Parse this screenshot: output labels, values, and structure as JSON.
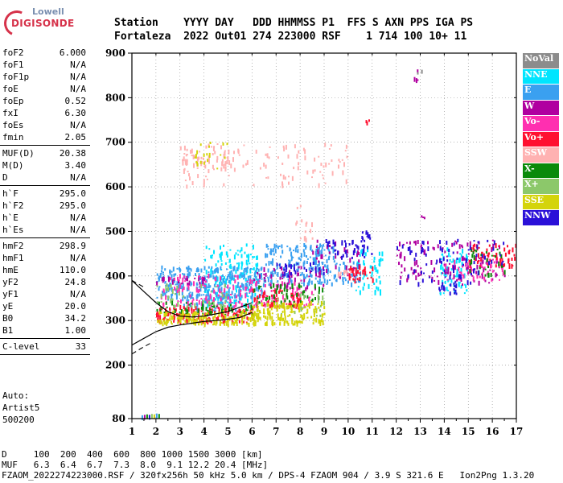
{
  "logo": {
    "line1": "Lowell",
    "line2": "DIGISONDE"
  },
  "header": {
    "line1": "Station    YYYY DAY   DDD HHMMSS P1  FFS S AXN PPS IGA PS",
    "line2": "Fortaleza  2022 Out01 274 223000 RSF    1 714 100 10+ 11"
  },
  "params": {
    "group1": [
      {
        "label": "foF2",
        "value": "6.000"
      },
      {
        "label": "foF1",
        "value": "N/A"
      },
      {
        "label": "foF1p",
        "value": "N/A"
      },
      {
        "label": "foE",
        "value": "N/A"
      },
      {
        "label": "foEp",
        "value": "0.52"
      },
      {
        "label": "fxI",
        "value": "6.30"
      },
      {
        "label": "foEs",
        "value": "N/A"
      },
      {
        "label": "fmin",
        "value": "2.05"
      }
    ],
    "group2": [
      {
        "label": "MUF(D)",
        "value": "20.38"
      },
      {
        "label": "M(D)",
        "value": "3.40"
      },
      {
        "label": "D",
        "value": "N/A"
      }
    ],
    "group3": [
      {
        "label": "h`F",
        "value": "295.0"
      },
      {
        "label": "h`F2",
        "value": "295.0"
      },
      {
        "label": "h`E",
        "value": "N/A"
      },
      {
        "label": "h`Es",
        "value": "N/A"
      }
    ],
    "group4": [
      {
        "label": "hmF2",
        "value": "298.9"
      },
      {
        "label": "hmF1",
        "value": "N/A"
      },
      {
        "label": "hmE",
        "value": "110.0"
      },
      {
        "label": "yF2",
        "value": "24.8"
      },
      {
        "label": "yF1",
        "value": "N/A"
      },
      {
        "label": "yE",
        "value": "20.0"
      },
      {
        "label": "B0",
        "value": "34.2"
      },
      {
        "label": "B1",
        "value": "1.00"
      }
    ],
    "group5": [
      {
        "label": "C-level",
        "value": "33"
      }
    ],
    "auto": [
      "Auto:",
      "Artist5",
      "500200"
    ]
  },
  "legend": [
    {
      "label": "NoVal",
      "color": "#8c8c8c"
    },
    {
      "label": "NNE",
      "color": "#00e5ff"
    },
    {
      "label": "E",
      "color": "#3aa0f0"
    },
    {
      "label": "W",
      "color": "#b000a0"
    },
    {
      "label": "Vo-",
      "color": "#ff2fb0"
    },
    {
      "label": "Vo+",
      "color": "#ff1030"
    },
    {
      "label": "SSW",
      "color": "#ffb2b2"
    },
    {
      "label": "X-",
      "color": "#0a8a0a"
    },
    {
      "label": "X+",
      "color": "#8cc86a"
    },
    {
      "label": "SSE",
      "color": "#d4d40a"
    },
    {
      "label": "NNW",
      "color": "#2a10d8"
    }
  ],
  "footer": {
    "line1": "D     100  200  400  600  800 1000 1500 3000 [km]",
    "line2": "MUF   6.3  6.4  6.7  7.3  8.0  9.1 12.2 20.4 [MHz]",
    "line3": "FZAOM_2022274223000.RSF / 320fx256h 50 kHz 5.0 km / DPS-4 FZAOM 904 / 3.9 S 321.6 E   Ion2Png 1.3.20"
  },
  "chart_data": {
    "type": "scatter",
    "title": "",
    "xlabel": "",
    "ylabel": "",
    "xlim": [
      1,
      17
    ],
    "ylim": [
      80,
      900
    ],
    "xticks": [
      1,
      2,
      3,
      4,
      5,
      6,
      7,
      8,
      9,
      10,
      11,
      12,
      13,
      14,
      15,
      16,
      17
    ],
    "yticks": [
      80,
      200,
      300,
      400,
      500,
      600,
      700,
      800,
      900
    ],
    "profile_line": {
      "x": [
        1.0,
        1.5,
        2.0,
        2.5,
        3.0,
        3.5,
        4.0,
        4.5,
        5.0,
        5.5,
        6.0
      ],
      "y": [
        245,
        260,
        275,
        285,
        290,
        294,
        298,
        300,
        303,
        307,
        318
      ]
    },
    "profile_line_dashed": {
      "x": [
        1.0,
        1.3,
        1.6
      ],
      "y": [
        225,
        235,
        245
      ]
    },
    "profile_upper": {
      "x": [
        1.0,
        1.5,
        2.0,
        2.5,
        3.0,
        3.5,
        4.0,
        4.5,
        5.0,
        5.5,
        6.0
      ],
      "y": [
        390,
        365,
        340,
        320,
        310,
        308,
        310,
        315,
        320,
        330,
        340
      ]
    },
    "series": [
      {
        "name": "NNE",
        "clusters": [
          [
            4,
            6.2,
            330,
            470,
            180
          ],
          [
            10.2,
            11.4,
            360,
            460,
            50
          ],
          [
            13.8,
            15,
            360,
            460,
            70
          ]
        ]
      },
      {
        "name": "E",
        "clusters": [
          [
            2,
            6.5,
            350,
            420,
            300
          ],
          [
            6.5,
            9.5,
            380,
            470,
            200
          ],
          [
            9.5,
            10.5,
            380,
            430,
            40
          ],
          [
            3,
            5.5,
            320,
            360,
            60
          ]
        ]
      },
      {
        "name": "W",
        "clusters": [
          [
            2,
            4,
            380,
            395,
            30
          ],
          [
            6,
            9,
            370,
            420,
            50
          ],
          [
            12,
            16.5,
            380,
            480,
            120
          ],
          [
            8.5,
            10.5,
            395,
            480,
            40
          ],
          [
            12.7,
            12.9,
            830,
            860,
            4
          ],
          [
            13,
            13.2,
            530,
            545,
            3
          ]
        ]
      },
      {
        "name": "Vo-",
        "clusters": [
          [
            2.1,
            6,
            330,
            400,
            100
          ],
          [
            6,
            8.5,
            330,
            390,
            60
          ],
          [
            14,
            16.5,
            390,
            440,
            50
          ]
        ]
      },
      {
        "name": "Vo+",
        "clusters": [
          [
            2,
            6,
            295,
            330,
            150
          ],
          [
            6,
            8,
            330,
            370,
            60
          ],
          [
            10,
            11,
            385,
            420,
            30
          ],
          [
            15,
            17,
            420,
            470,
            60
          ],
          [
            10.7,
            10.9,
            740,
            760,
            3
          ]
        ]
      },
      {
        "name": "SSW",
        "clusters": [
          [
            3,
            10,
            600,
            700,
            120
          ],
          [
            3,
            5,
            640,
            690,
            40
          ],
          [
            7.8,
            8.5,
            480,
            560,
            15
          ],
          [
            9.5,
            10.5,
            400,
            410,
            10
          ]
        ]
      },
      {
        "name": "X-",
        "clusters": [
          [
            2,
            6,
            310,
            340,
            60
          ],
          [
            6,
            9,
            330,
            380,
            50
          ],
          [
            15,
            16.5,
            400,
            460,
            30
          ]
        ]
      },
      {
        "name": "X+",
        "clusters": [
          [
            2,
            5,
            330,
            380,
            40
          ],
          [
            6,
            9,
            310,
            360,
            30
          ]
        ]
      },
      {
        "name": "SSE",
        "clusters": [
          [
            2,
            6.3,
            290,
            320,
            160
          ],
          [
            6,
            9,
            290,
            340,
            150
          ],
          [
            3.5,
            5,
            640,
            700,
            20
          ]
        ]
      },
      {
        "name": "NNW",
        "clusters": [
          [
            7,
            9,
            400,
            430,
            30
          ],
          [
            9,
            11,
            440,
            480,
            40
          ],
          [
            10.5,
            11,
            480,
            500,
            10
          ],
          [
            12,
            16.5,
            380,
            480,
            80
          ],
          [
            13.7,
            14.5,
            360,
            380,
            15
          ]
        ]
      },
      {
        "name": "NoVal",
        "clusters": [
          [
            12.8,
            13.1,
            850,
            865,
            2
          ]
        ]
      }
    ],
    "low_points": {
      "x": [
        1.4,
        1.5,
        1.6,
        1.7,
        1.8,
        1.9,
        2.0,
        2.1
      ],
      "y": [
        82,
        83,
        84,
        83,
        85,
        84,
        86,
        85
      ]
    }
  }
}
